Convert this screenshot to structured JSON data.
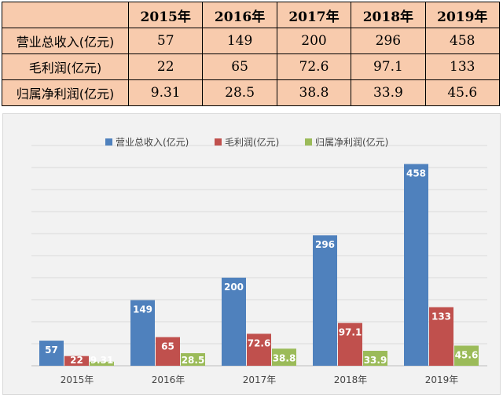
{
  "table": {
    "corner": "",
    "headers": [
      "2015年",
      "2016年",
      "2017年",
      "2018年",
      "2019年"
    ],
    "rows": [
      {
        "label": "营业总收入(亿元)",
        "cells": [
          "57",
          "149",
          "200",
          "296",
          "458"
        ]
      },
      {
        "label": "毛利润(亿元)",
        "cells": [
          "22",
          "65",
          "72.6",
          "97.1",
          "133"
        ]
      },
      {
        "label": "归属净利润(亿元)",
        "cells": [
          "9.31",
          "28.5",
          "38.8",
          "33.9",
          "45.6"
        ]
      }
    ]
  },
  "chart_data": {
    "type": "bar",
    "title": "",
    "xlabel": "",
    "ylabel": "",
    "categories": [
      "2015年",
      "2016年",
      "2017年",
      "2018年",
      "2019年"
    ],
    "series": [
      {
        "name": "营业总收入(亿元)",
        "color": "#4f81bd",
        "values": [
          57,
          149,
          200,
          296,
          458
        ],
        "labels": [
          "57",
          "149",
          "200",
          "296",
          "458"
        ]
      },
      {
        "name": "毛利润(亿元)",
        "color": "#c0504d",
        "values": [
          22,
          65,
          72.6,
          97.1,
          133
        ],
        "labels": [
          "22",
          "65",
          "72.6",
          "97.1",
          "133"
        ]
      },
      {
        "name": "归属净利润(亿元)",
        "color": "#9bbb59",
        "values": [
          9.31,
          28.5,
          38.8,
          33.9,
          45.6
        ],
        "labels": [
          "9.31",
          "28.5",
          "38.8",
          "33.9",
          "45.6"
        ]
      }
    ],
    "ylim": [
      0,
      500
    ],
    "grid": true,
    "legend_position": "top"
  }
}
